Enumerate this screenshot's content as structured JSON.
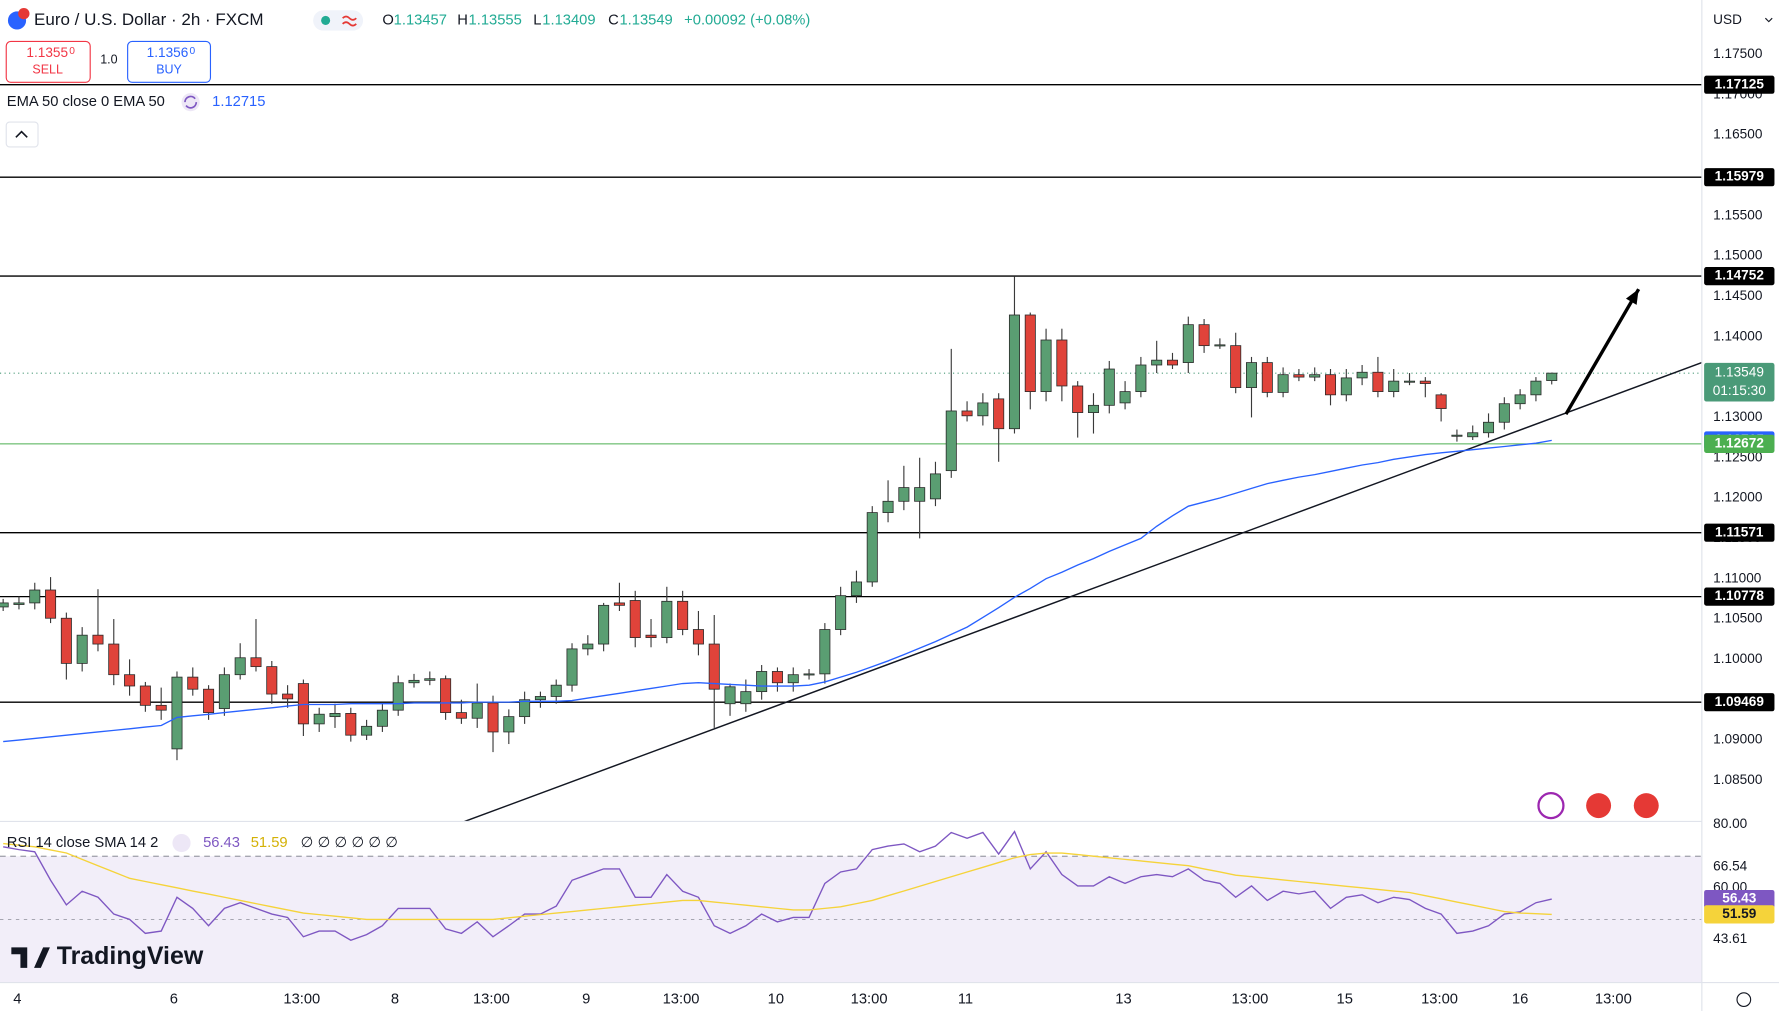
{
  "header": {
    "ohlc": [
      {
        "key": "O",
        "value": "1.13457"
      },
      {
        "key": "H",
        "value": "1.13555"
      },
      {
        "key": "L",
        "value": "1.13409"
      },
      {
        "key": "C",
        "value": "1.13549"
      }
    ],
    "change": "+0.00092 (+0.08%)",
    "sell": {
      "price": "1.1355",
      "pip": "0",
      "label": "SELL"
    },
    "quantity": "1.0",
    "buy": {
      "price": "1.1356",
      "pip": "0",
      "label": "BUY"
    },
    "currency": "USD",
    "brand": "TradingView"
  },
  "chart_data": [
    {
      "type": "candlestick",
      "title": "Euro / U.S. Dollar · 2h · FXCM",
      "up_color": "#5a9e72",
      "down_color": "#e0433a",
      "open": [
        1.1065,
        1.1068,
        1.107,
        1.1086,
        1.1051,
        1.0995,
        1.103,
        1.1019,
        1.0981,
        1.0967,
        1.0943,
        1.0889,
        1.0978,
        1.0963,
        1.0939,
        1.0981,
        1.1002,
        1.0991,
        1.0957,
        1.097,
        1.092,
        1.0929,
        1.0933,
        1.0906,
        1.0917,
        1.0937,
        1.0971,
        1.0974,
        1.0976,
        1.0934,
        1.0927,
        1.0946,
        1.091,
        1.0929,
        1.095,
        1.0954,
        1.0968,
        1.1013,
        1.1019,
        1.107,
        1.1073,
        1.103,
        1.1027,
        1.1072,
        1.1037,
        1.1019,
        1.0945,
        1.0945,
        1.096,
        1.0985,
        1.0971,
        1.0981,
        1.0982,
        1.1037,
        1.1079,
        1.1096,
        1.1182,
        1.1196,
        1.1196,
        1.1199,
        1.1234,
        1.1308,
        1.1302,
        1.1323,
        1.1286,
        1.1427,
        1.1332,
        1.1396,
        1.1339,
        1.1306,
        1.1315,
        1.1318,
        1.1332,
        1.1365,
        1.1371,
        1.1368,
        1.1415,
        1.1389,
        1.1389,
        1.1337,
        1.1368,
        1.1331,
        1.1353,
        1.135,
        1.1353,
        1.1328,
        1.1349,
        1.1356,
        1.1332,
        1.1345,
        1.1345,
        1.1328,
        1.1278,
        1.1276,
        1.1281,
        1.1294,
        1.1317,
        1.1328,
        1.13457
      ],
      "high": [
        1.1075,
        1.1078,
        1.1095,
        1.1102,
        1.1058,
        1.104,
        1.1087,
        1.105,
        1.1,
        1.0972,
        1.0965,
        1.0985,
        1.099,
        1.0968,
        1.099,
        1.102,
        1.105,
        1.0998,
        1.0968,
        1.0975,
        1.094,
        1.0945,
        1.094,
        1.0925,
        1.0945,
        1.098,
        1.0982,
        1.0985,
        1.098,
        1.095,
        1.097,
        1.0955,
        1.0938,
        1.096,
        1.096,
        1.0975,
        1.102,
        1.103,
        1.107,
        1.1095,
        1.1085,
        1.105,
        1.109,
        1.1085,
        1.106,
        1.1055,
        1.097,
        1.0975,
        1.0993,
        1.099,
        1.099,
        1.0988,
        1.1045,
        1.109,
        1.111,
        1.119,
        1.1222,
        1.124,
        1.125,
        1.1245,
        1.1385,
        1.132,
        1.133,
        1.133,
        1.1475,
        1.143,
        1.141,
        1.141,
        1.1345,
        1.133,
        1.137,
        1.1345,
        1.1375,
        1.1395,
        1.138,
        1.1425,
        1.1422,
        1.1398,
        1.1405,
        1.1375,
        1.1375,
        1.1362,
        1.136,
        1.1362,
        1.136,
        1.136,
        1.1365,
        1.1375,
        1.136,
        1.1355,
        1.135,
        1.133,
        1.1285,
        1.129,
        1.1305,
        1.1325,
        1.1335,
        1.135,
        1.13555
      ],
      "low": [
        1.106,
        1.1062,
        1.1062,
        1.1045,
        1.0975,
        1.0985,
        1.101,
        1.0968,
        1.0955,
        1.0935,
        1.0925,
        1.0875,
        1.0955,
        1.0925,
        1.093,
        1.0975,
        1.0985,
        1.0945,
        1.094,
        1.0905,
        1.091,
        1.0915,
        1.0898,
        1.09,
        1.091,
        1.093,
        1.0965,
        1.0968,
        1.0925,
        1.092,
        1.0915,
        1.0885,
        1.0895,
        1.092,
        1.094,
        1.0945,
        1.096,
        1.1005,
        1.101,
        1.106,
        1.1015,
        1.1015,
        1.102,
        1.103,
        1.1005,
        1.0915,
        1.093,
        1.0935,
        1.095,
        1.096,
        1.096,
        1.0975,
        1.097,
        1.103,
        1.107,
        1.109,
        1.117,
        1.1185,
        1.115,
        1.119,
        1.1225,
        1.1295,
        1.129,
        1.1245,
        1.128,
        1.131,
        1.132,
        1.132,
        1.1275,
        1.128,
        1.1305,
        1.131,
        1.1325,
        1.1355,
        1.136,
        1.1355,
        1.138,
        1.1385,
        1.133,
        1.13,
        1.1325,
        1.1325,
        1.1345,
        1.1345,
        1.1315,
        1.132,
        1.134,
        1.1325,
        1.1325,
        1.134,
        1.1325,
        1.1295,
        1.127,
        1.1272,
        1.1275,
        1.1285,
        1.131,
        1.132,
        1.13409
      ],
      "close": [
        1.107,
        1.107,
        1.1086,
        1.1051,
        1.0995,
        1.103,
        1.1019,
        1.0981,
        1.0967,
        1.0943,
        1.0937,
        1.0978,
        1.0963,
        1.0934,
        1.0981,
        1.1002,
        1.0991,
        1.0957,
        1.0951,
        1.092,
        1.0932,
        1.0933,
        1.0906,
        1.0917,
        1.0937,
        1.0971,
        1.0974,
        1.0976,
        1.0934,
        1.0927,
        1.0946,
        1.091,
        1.0929,
        1.095,
        1.0954,
        1.0968,
        1.1013,
        1.1019,
        1.1067,
        1.1067,
        1.1027,
        1.1027,
        1.1072,
        1.1037,
        1.1019,
        1.0963,
        1.0966,
        1.096,
        1.0985,
        1.0971,
        1.0981,
        1.0982,
        1.1037,
        1.1079,
        1.1096,
        1.1182,
        1.1196,
        1.1213,
        1.1213,
        1.123,
        1.1308,
        1.1302,
        1.1318,
        1.1286,
        1.1427,
        1.1332,
        1.1396,
        1.1339,
        1.1306,
        1.1315,
        1.136,
        1.1332,
        1.1365,
        1.1371,
        1.1365,
        1.1415,
        1.1389,
        1.139,
        1.1337,
        1.1368,
        1.1331,
        1.1353,
        1.135,
        1.1353,
        1.1328,
        1.1349,
        1.1356,
        1.1332,
        1.1345,
        1.1345,
        1.1342,
        1.1311,
        1.1278,
        1.1281,
        1.1294,
        1.1317,
        1.1328,
        1.1345,
        1.13549
      ],
      "series": [
        {
          "name": "EMA 50 close 0 EMA 50",
          "color": "#2962ff",
          "values": [
            1.0898,
            1.09,
            1.0902,
            1.0904,
            1.0906,
            1.0908,
            1.091,
            1.0912,
            1.0914,
            1.0916,
            1.0918,
            1.0928,
            1.093,
            1.0932,
            1.0934,
            1.0936,
            1.0938,
            1.094,
            1.0942,
            1.0944,
            1.0944,
            1.0944,
            1.0945,
            1.0945,
            1.0945,
            1.0945,
            1.0946,
            1.0946,
            1.0946,
            1.0946,
            1.0947,
            1.0947,
            1.0947,
            1.0948,
            1.0948,
            1.0948,
            1.0949,
            1.0952,
            1.0955,
            1.0958,
            1.0961,
            1.0964,
            1.0967,
            1.097,
            1.0971,
            1.097,
            1.0969,
            1.0968,
            1.0967,
            1.0967,
            1.0967,
            1.0968,
            1.0972,
            1.0978,
            1.0984,
            1.0991,
            1.0998,
            1.1006,
            1.1014,
            1.1022,
            1.1031,
            1.104,
            1.1052,
            1.1064,
            1.1077,
            1.1088,
            1.11,
            1.1108,
            1.1117,
            1.1125,
            1.1134,
            1.1142,
            1.115,
            1.1165,
            1.1178,
            1.119,
            1.1195,
            1.12,
            1.1206,
            1.1212,
            1.1218,
            1.1222,
            1.1226,
            1.1229,
            1.1233,
            1.1237,
            1.1241,
            1.1244,
            1.1248,
            1.1251,
            1.1254,
            1.1256,
            1.1258,
            1.126,
            1.1262,
            1.1264,
            1.1266,
            1.1268,
            1.12715
          ]
        }
      ],
      "levels": [
        1.17125,
        1.15979,
        1.14752,
        1.11571,
        1.10778,
        1.09469
      ],
      "level_color": "#000000",
      "price_line": 1.12672,
      "price_line_color": "#4caf50",
      "countdown": "01:15:30",
      "last_color": "#4a9a78",
      "trendline": {
        "x": [
          29.2,
          107.5
        ],
        "y": [
          1.0799,
          1.1368
        ]
      },
      "arrow": {
        "x": [
          98.9,
          103.5
        ],
        "y": [
          1.1304,
          1.1459
        ]
      },
      "xlim": [
        -0.2,
        107.5
      ],
      "xticks": [
        {
          "value": 0.9,
          "label": "4"
        },
        {
          "value": 10.8,
          "label": "6"
        },
        {
          "value": 18.9,
          "label": "13:00"
        },
        {
          "value": 24.8,
          "label": "8"
        },
        {
          "value": 30.9,
          "label": "13:00"
        },
        {
          "value": 36.9,
          "label": "9"
        },
        {
          "value": 42.9,
          "label": "13:00"
        },
        {
          "value": 48.9,
          "label": "10"
        },
        {
          "value": 54.8,
          "label": "13:00"
        },
        {
          "value": 60.9,
          "label": "11"
        },
        {
          "value": 70.9,
          "label": "13"
        },
        {
          "value": 78.9,
          "label": "13:00"
        },
        {
          "value": 84.9,
          "label": "15"
        },
        {
          "value": 90.9,
          "label": "13:00"
        },
        {
          "value": 96,
          "label": "16"
        },
        {
          "value": 101.9,
          "label": "13:00"
        }
      ],
      "ylim": [
        1.0799,
        1.18175
      ],
      "yticks": [
        {
          "value": 1.175,
          "label": "1.17500"
        },
        {
          "value": 1.17,
          "label": "1.17000"
        },
        {
          "value": 1.165,
          "label": "1.16500"
        },
        {
          "value": 1.16,
          "label": "1.16000"
        },
        {
          "value": 1.155,
          "label": "1.15500"
        },
        {
          "value": 1.15,
          "label": "1.15000"
        },
        {
          "value": 1.145,
          "label": "1.14500"
        },
        {
          "value": 1.14,
          "label": "1.14000"
        },
        {
          "value": 1.135,
          "label": "1.13500"
        },
        {
          "value": 1.13,
          "label": "1.13000"
        },
        {
          "value": 1.125,
          "label": "1.12500"
        },
        {
          "value": 1.12,
          "label": "1.12000"
        },
        {
          "value": 1.115,
          "label": "1.11500"
        },
        {
          "value": 1.11,
          "label": "1.11000"
        },
        {
          "value": 1.105,
          "label": "1.10500"
        },
        {
          "value": 1.1,
          "label": "1.10000"
        },
        {
          "value": 1.095,
          "label": "1.09500"
        },
        {
          "value": 1.09,
          "label": "1.09000"
        },
        {
          "value": 1.085,
          "label": "1.08500"
        }
      ]
    },
    {
      "type": "line",
      "title": "RSI 14 close SMA 14 2",
      "na": "∅ ∅ ∅ ∅ ∅ ∅",
      "series": [
        {
          "color": "#7e57c2",
          "values": [
            73,
            72.1,
            71.4,
            62.4,
            54.6,
            58.9,
            57,
            51.7,
            50,
            45.6,
            46.3,
            57,
            53.5,
            48,
            53.5,
            55.3,
            53.5,
            51.7,
            50.6,
            44.5,
            46.3,
            46.3,
            43.4,
            45.2,
            48,
            53.5,
            53.5,
            53.5,
            47,
            45.6,
            49.2,
            44.5,
            48,
            51.7,
            51.7,
            54.2,
            62.4,
            64.2,
            66,
            66,
            57,
            57,
            64.2,
            58.9,
            57,
            48,
            45.6,
            48,
            51.7,
            49.2,
            50.6,
            50.6,
            61.4,
            65,
            66,
            72.1,
            73.2,
            73.9,
            71.4,
            73.2,
            77.5,
            75.7,
            77.5,
            70.7,
            77.8,
            66,
            71.4,
            64.2,
            60.6,
            60.6,
            63.5,
            61.4,
            63.5,
            64.2,
            63.5,
            66,
            62.4,
            61.4,
            57,
            60.6,
            56,
            58.9,
            58.1,
            58.9,
            53.5,
            57,
            57.8,
            55.3,
            57,
            56.3,
            53.5,
            51.7,
            45.6,
            46.3,
            48,
            51.7,
            52.4,
            55.3,
            56.43
          ]
        },
        {
          "color": "#f5d33a",
          "values": [
            74,
            73.5,
            73,
            72,
            71,
            69,
            67,
            65,
            63,
            62,
            61,
            60,
            59,
            58,
            57,
            56,
            55,
            54,
            53,
            52,
            51.5,
            51,
            50.5,
            50,
            50,
            50,
            50,
            50,
            50,
            50,
            50,
            50,
            50.5,
            51,
            51.5,
            52,
            52.5,
            53,
            53.5,
            54,
            54.5,
            55,
            55.5,
            56,
            56,
            55.5,
            55,
            54.5,
            54,
            53.5,
            53,
            53,
            53.5,
            54,
            55,
            56,
            57.5,
            59,
            60.5,
            62,
            63.5,
            65,
            66.5,
            68,
            69.5,
            70.5,
            71,
            71,
            70.5,
            70,
            69.5,
            69,
            68.5,
            68,
            67.5,
            67,
            66,
            65,
            64,
            63.5,
            63,
            62.5,
            62,
            61.5,
            61,
            60.5,
            60,
            59.5,
            59,
            58.5,
            57.5,
            56.5,
            55.5,
            54.5,
            53.5,
            52.5,
            52,
            51.8,
            51.59
          ]
        }
      ],
      "band": [
        30,
        70
      ],
      "midline": 50,
      "ylim": [
        30,
        81
      ],
      "yticks": [
        {
          "value": 80,
          "label": "80.00"
        },
        66.54,
        {
          "value": 60,
          "label": "60.00"
        },
        43.61
      ]
    }
  ]
}
